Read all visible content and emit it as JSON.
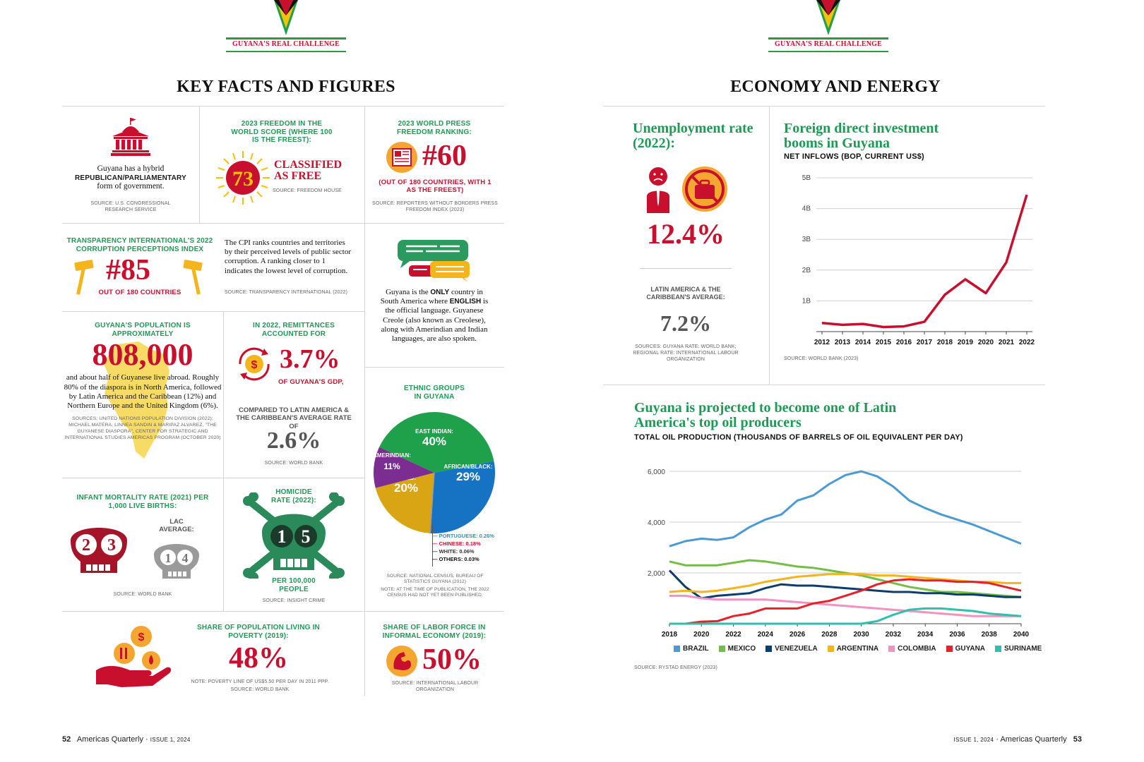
{
  "header_label": "GUYANA'S REAL CHALLENGE",
  "left": {
    "title": "KEY FACTS AND FIGURES",
    "government": {
      "line1": "Guyana has a hybrid",
      "line2": "REPUBLICAN/PARLIAMENTARY",
      "line3": "form of government.",
      "source": "SOURCE: U.S. CONGRESSIONAL RESEARCH SERVICE"
    },
    "freedom": {
      "heading": "2023 FREEDOM IN THE WORLD SCORE (WHERE 100 IS THE FREEST):",
      "score": "73",
      "status": "CLASSIFIED AS FREE",
      "source": "SOURCE: FREEDOM HOUSE"
    },
    "press": {
      "heading": "2023 WORLD PRESS FREEDOM RANKING:",
      "rank": "#60",
      "note": "(OUT OF 180 COUNTRIES, WITH 1 AS THE FREEST)",
      "source": "SOURCE: REPORTERS WITHOUT BORDERS PRESS FREEDOM INDEX (2023)"
    },
    "corruption": {
      "heading": "TRANSPARENCY INTERNATIONAL'S 2022 CORRUPTION PERCEPTIONS INDEX",
      "rank": "#85",
      "note": "OUT OF 180 COUNTRIES",
      "text": "The CPI ranks countries and territories by their perceived levels of public sector corruption. A ranking closer to 1 indicates the lowest level of corruption.",
      "source": "SOURCE: TRANSPARENCY INTERNATIONAL (2022)"
    },
    "language": {
      "t1": "Guyana is the ",
      "t2": "ONLY",
      "t3": " country in South America where ",
      "t4": "ENGLISH",
      "t5": " is the official language. Guyanese Creole (also known as Creolese), along with Amerindian and Indian languages, are also spoken."
    },
    "population": {
      "heading": "GUYANA'S POPULATION IS APPROXIMATELY",
      "value": "808,000",
      "text": "and about half of Guyanese live abroad. Roughly 80% of the diaspora is in North America, followed by Latin America and the Caribbean (12%) and Northern Europe and the United Kingdom (6%).",
      "source": "SOURCES: UNITED NATIONS POPULATION DIVISION (2022); MICHAEL MATERA, LINNEA SANDIN & MARIPAZ ALVAREZ, \"THE GUYANESE DIASPORA\", CENTER FOR STRATEGIC AND INTERNATIONAL STUDIES AMERICAS PROGRAM (OCTOBER 2020)"
    },
    "remittances": {
      "heading": "IN 2022, REMITTANCES ACCOUNTED FOR",
      "value": "3.7%",
      "note": "OF GUYANA'S GDP,",
      "compare": "COMPARED TO LATIN AMERICA & THE CARIBBEAN'S AVERAGE RATE OF",
      "lac": "2.6%",
      "source": "SOURCE: WORLD BANK"
    },
    "ethnic": {
      "heading": "ETHNIC GROUPS IN GUYANA",
      "slices": [
        {
          "label": "EAST INDIAN:",
          "value": "40%",
          "pct": 40,
          "color": "#1fa04a"
        },
        {
          "label": "AFRICAN/BLACK:",
          "value": "29%",
          "pct": 29,
          "color": "#1672c2"
        },
        {
          "label": "MIXED:",
          "value": "20%",
          "pct": 20,
          "color": "#d9a514"
        },
        {
          "label": "AMERINDIAN:",
          "value": "11%",
          "pct": 11,
          "color": "#7b2d92"
        }
      ],
      "small": [
        {
          "label": "PORTUGUESE: 0.26%",
          "color": "#1a9ad6"
        },
        {
          "label": "CHINESE: 0.18%",
          "color": "#c8102e"
        },
        {
          "label": "WHITE: 0.06%",
          "color": "#333333"
        },
        {
          "label": "OTHERS: 0.03%",
          "color": "#111111"
        }
      ],
      "source": "SOURCE: NATIONAL CENSUS, BUREAU OF STATISTICS GUYANA (2012)",
      "note": "NOTE: AT THE TIME OF PUBLICATION, THE 2022 CENSUS HAD NOT YET BEEN PUBLISHED."
    },
    "infant": {
      "heading": "INFANT MORTALITY RATE (2021) PER 1,000 LIVE BIRTHS:",
      "d1": "2",
      "d2": "3",
      "lac_label": "LAC AVERAGE:",
      "l1": "1",
      "l2": "4",
      "source": "SOURCE: WORLD BANK"
    },
    "homicide": {
      "heading": "HOMICIDE RATE (2022):",
      "d1": "1",
      "d2": "5",
      "note": "PER 100,000 PEOPLE",
      "source": "SOURCE: INSIGHT CRIME"
    },
    "poverty": {
      "heading": "SHARE OF POPULATION LIVING IN POVERTY (2019):",
      "value": "48%",
      "note": "NOTE: POVERTY LINE OF US$5.50 PER DAY IN 2011 PPP.",
      "source": "SOURCE: WORLD BANK"
    },
    "informal": {
      "heading": "SHARE OF LABOR FORCE IN INFORMAL ECONOMY (2019):",
      "value": "50%",
      "source": "SOURCE: INTERNATIONAL LABOUR ORGANIZATION"
    },
    "footer": {
      "page": "52",
      "mag": "Americas Quarterly",
      "dot": "·",
      "issue": "ISSUE 1, 2024"
    }
  },
  "right": {
    "title": "ECONOMY AND ENERGY",
    "unemployment": {
      "title": "Unemployment rate (2022):",
      "value": "12.4%",
      "lac_label": "LATIN AMERICA & THE CARIBBEAN'S AVERAGE:",
      "lac": "7.2%",
      "source": "SOURCES: GUYANA RATE: WORLD BANK; REGIONAL RATE: INTERNATIONAL LABOUR ORGANIZATION"
    },
    "fdi_source": "SOURCE: WORLD BANK (2023)",
    "oil_source": "SOURCE: RYSTAD ENERGY (2023)",
    "footer": {
      "page": "53",
      "mag": "Americas Quarterly",
      "dot": "·",
      "issue": "ISSUE 1, 2024"
    }
  },
  "chart_data": [
    {
      "type": "line",
      "title": "Foreign direct investment booms in Guyana",
      "subtitle": "NET INFLOWS (BOP, CURRENT US$)",
      "x": [
        2012,
        2013,
        2014,
        2015,
        2016,
        2017,
        2018,
        2019,
        2020,
        2021,
        2022
      ],
      "y_ticks": [
        "1B",
        "2B",
        "3B",
        "4B",
        "5B"
      ],
      "ylim": [
        0,
        5
      ],
      "series": [
        {
          "values": [
            0.28,
            0.22,
            0.25,
            0.15,
            0.17,
            0.32,
            1.2,
            1.7,
            1.25,
            2.25,
            4.45
          ],
          "color": "#c8102e"
        }
      ]
    },
    {
      "type": "line",
      "title": "Guyana is projected to become one of Latin America's top oil producers",
      "subtitle": "TOTAL OIL PRODUCTION (THOUSANDS OF BARRELS OF OIL EQUIVALENT PER DAY)",
      "x": [
        2018,
        2019,
        2020,
        2021,
        2022,
        2023,
        2024,
        2025,
        2026,
        2027,
        2028,
        2029,
        2030,
        2031,
        2032,
        2033,
        2034,
        2035,
        2036,
        2037,
        2038,
        2039,
        2040
      ],
      "x_ticks": [
        2018,
        2020,
        2022,
        2024,
        2026,
        2028,
        2030,
        2032,
        2034,
        2036,
        2038,
        2040
      ],
      "y_ticks": [
        "2,000",
        "4,000",
        "6,000"
      ],
      "ylim": [
        0,
        6500
      ],
      "series": [
        {
          "name": "BRAZIL",
          "color": "#4a9ad4",
          "values": [
            3050,
            3250,
            3350,
            3300,
            3400,
            3800,
            4100,
            4300,
            4850,
            5050,
            5500,
            5850,
            6000,
            5800,
            5400,
            4850,
            4550,
            4300,
            4100,
            3900,
            3650,
            3400,
            3150
          ]
        },
        {
          "name": "MEXICO",
          "color": "#72bf44",
          "values": [
            2450,
            2300,
            2300,
            2300,
            2400,
            2500,
            2450,
            2350,
            2250,
            2200,
            2100,
            2000,
            1900,
            1750,
            1600,
            1450,
            1350,
            1250,
            1250,
            1200,
            1150,
            1100,
            1050
          ]
        },
        {
          "name": "VENEZUELA",
          "color": "#0b3d6e",
          "values": [
            2100,
            1450,
            1000,
            1100,
            1150,
            1200,
            1400,
            1550,
            1500,
            1500,
            1450,
            1400,
            1350,
            1300,
            1250,
            1250,
            1200,
            1200,
            1150,
            1150,
            1100,
            1050,
            1050
          ]
        },
        {
          "name": "ARGENTINA",
          "color": "#f2b51c",
          "values": [
            1250,
            1300,
            1250,
            1300,
            1400,
            1500,
            1650,
            1750,
            1850,
            1900,
            1950,
            1950,
            1950,
            1900,
            1900,
            1850,
            1800,
            1750,
            1700,
            1650,
            1650,
            1600,
            1600
          ]
        },
        {
          "name": "COLOMBIA",
          "color": "#f391bf",
          "values": [
            1100,
            1100,
            1000,
            950,
            950,
            950,
            950,
            900,
            850,
            800,
            750,
            700,
            650,
            600,
            550,
            500,
            450,
            400,
            350,
            300,
            300,
            300,
            300
          ]
        },
        {
          "name": "GUYANA",
          "color": "#e8202a",
          "values": [
            0,
            0,
            80,
            100,
            300,
            400,
            600,
            600,
            600,
            800,
            900,
            1100,
            1300,
            1550,
            1700,
            1750,
            1700,
            1700,
            1650,
            1650,
            1600,
            1450,
            1300
          ]
        },
        {
          "name": "SURINAME",
          "color": "#2fbfad",
          "values": [
            0,
            0,
            0,
            0,
            0,
            0,
            0,
            0,
            0,
            0,
            0,
            0,
            0,
            100,
            350,
            550,
            600,
            600,
            550,
            500,
            400,
            350,
            300
          ]
        }
      ]
    }
  ]
}
